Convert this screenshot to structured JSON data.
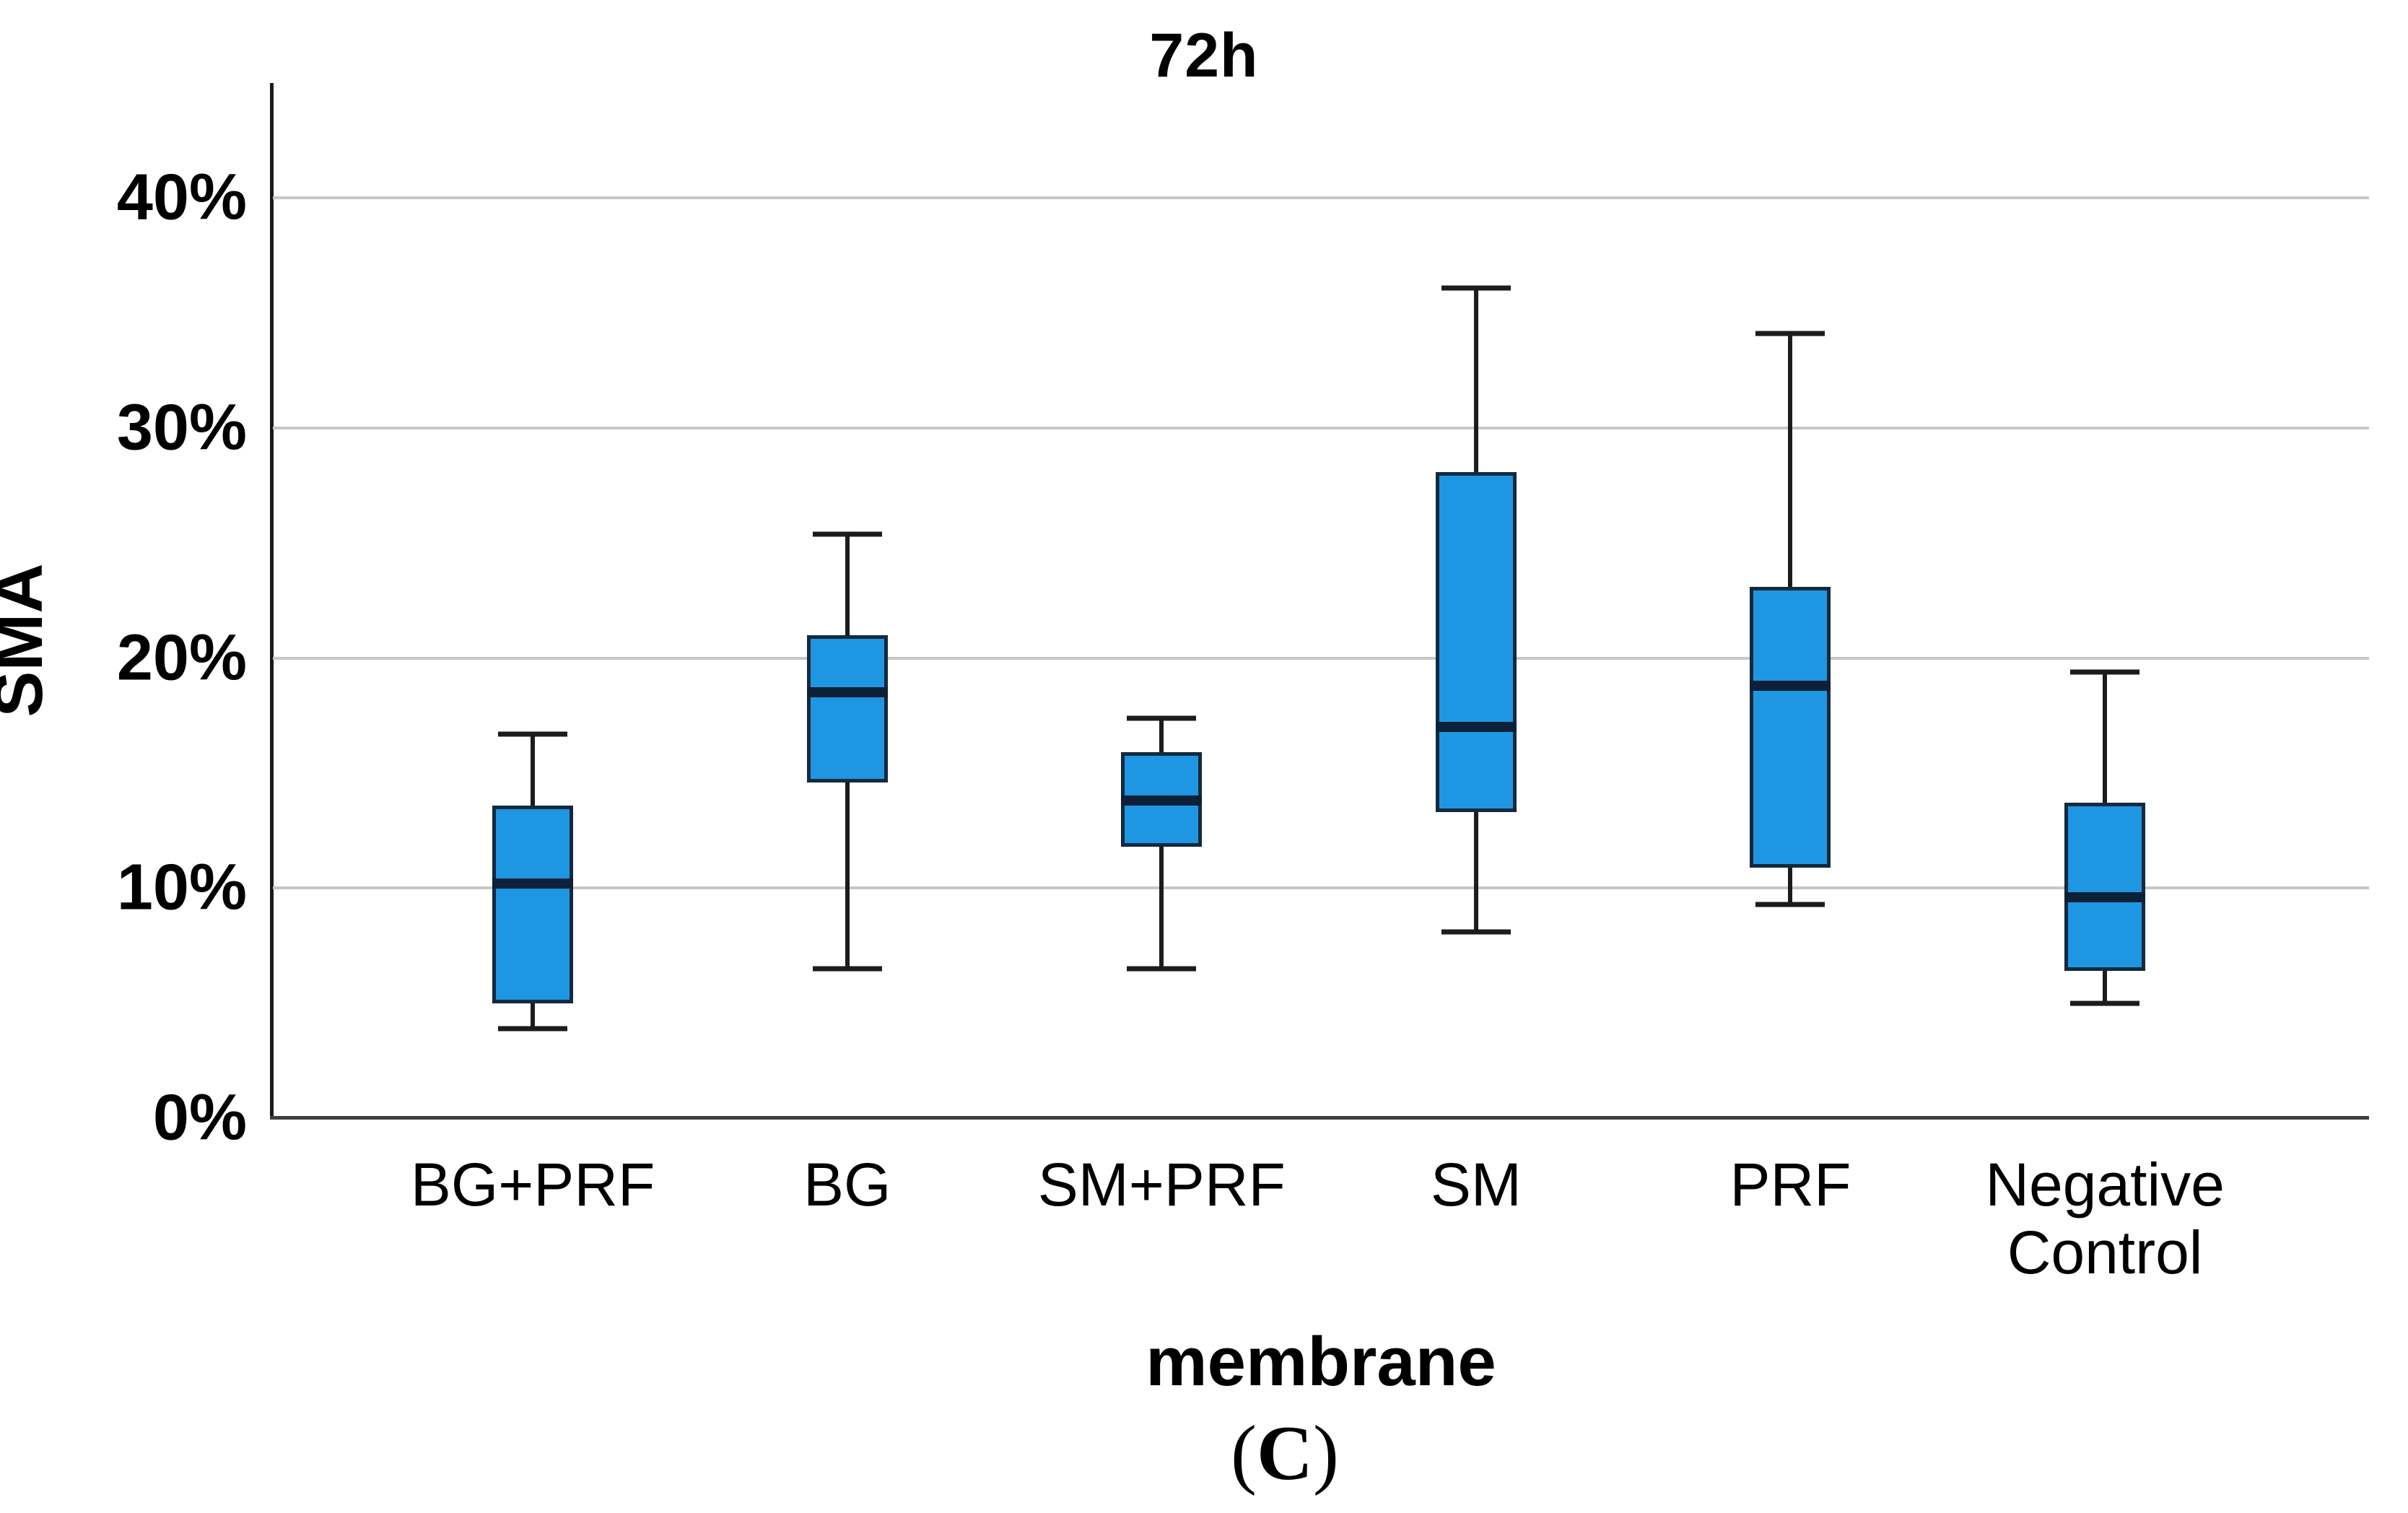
{
  "figure": {
    "caption_prefix": "(",
    "caption_letter": "C",
    "caption_suffix": ")"
  },
  "chart_data": {
    "type": "boxplot",
    "title": "72h",
    "xlabel": "membrane",
    "ylabel": "SMA",
    "unit": "%",
    "categories": [
      "BG+PRF",
      "BG",
      "SM+PRF",
      "SM",
      "PRF",
      "Negative Control"
    ],
    "ylim": [
      0,
      45
    ],
    "y_ticks": [
      0,
      10,
      20,
      30,
      40
    ],
    "y_tick_labels": [
      "0%",
      "10%",
      "20%",
      "30%",
      "40%"
    ],
    "grid": "horizontal",
    "legend": "none",
    "series": [
      {
        "category": "BG+PRF",
        "whisker_low": 3.9,
        "q1": 5.0,
        "median": 10.2,
        "q3": 13.6,
        "whisker_high": 16.7
      },
      {
        "category": "BG",
        "whisker_low": 6.5,
        "q1": 14.6,
        "median": 18.5,
        "q3": 21.0,
        "whisker_high": 25.4
      },
      {
        "category": "SM+PRF",
        "whisker_low": 6.5,
        "q1": 11.8,
        "median": 13.8,
        "q3": 15.9,
        "whisker_high": 17.4
      },
      {
        "category": "SM",
        "whisker_low": 8.1,
        "q1": 13.3,
        "median": 17.0,
        "q3": 28.1,
        "whisker_high": 36.1
      },
      {
        "category": "PRF",
        "whisker_low": 9.3,
        "q1": 10.9,
        "median": 18.8,
        "q3": 23.1,
        "whisker_high": 34.1
      },
      {
        "category": "Negative Control",
        "whisker_low": 5.0,
        "q1": 6.4,
        "median": 9.6,
        "q3": 13.7,
        "whisker_high": 19.4
      }
    ],
    "category_center_pct": [
      12.4,
      27.4,
      42.4,
      57.4,
      72.4,
      87.4
    ],
    "colors": {
      "box_fill": "#1e96e1",
      "box_border": "#13293d",
      "median": "#0c2038",
      "whisker": "#1c1c1c",
      "gridline": "#c7c7c7",
      "axis": "#1a1a1a",
      "text": "#000000"
    }
  }
}
